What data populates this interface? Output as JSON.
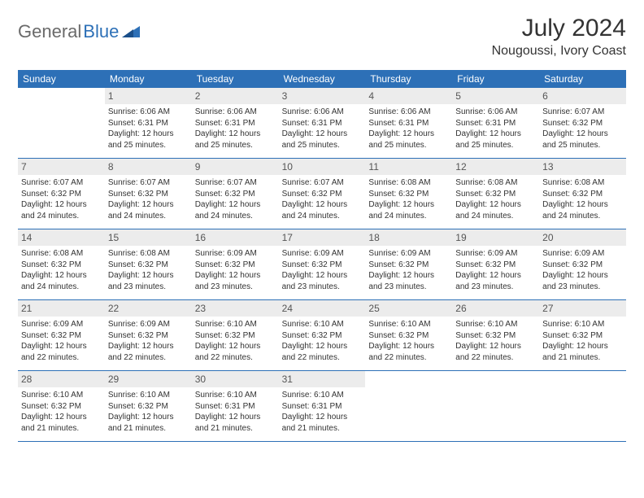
{
  "logo": {
    "part1": "General",
    "part2": "Blue"
  },
  "title": "July 2024",
  "location": "Nougoussi, Ivory Coast",
  "colors": {
    "header_bg": "#2d70b7",
    "header_text": "#ffffff",
    "daynum_bg": "#ececec",
    "border": "#2d70b7",
    "text": "#333333",
    "logo_gray": "#6a6a6a",
    "logo_blue": "#2d70b7"
  },
  "day_names": [
    "Sunday",
    "Monday",
    "Tuesday",
    "Wednesday",
    "Thursday",
    "Friday",
    "Saturday"
  ],
  "weeks": [
    [
      {
        "n": "",
        "sr": "",
        "ss": "",
        "d1": "",
        "d2": ""
      },
      {
        "n": "1",
        "sr": "Sunrise: 6:06 AM",
        "ss": "Sunset: 6:31 PM",
        "d1": "Daylight: 12 hours",
        "d2": "and 25 minutes."
      },
      {
        "n": "2",
        "sr": "Sunrise: 6:06 AM",
        "ss": "Sunset: 6:31 PM",
        "d1": "Daylight: 12 hours",
        "d2": "and 25 minutes."
      },
      {
        "n": "3",
        "sr": "Sunrise: 6:06 AM",
        "ss": "Sunset: 6:31 PM",
        "d1": "Daylight: 12 hours",
        "d2": "and 25 minutes."
      },
      {
        "n": "4",
        "sr": "Sunrise: 6:06 AM",
        "ss": "Sunset: 6:31 PM",
        "d1": "Daylight: 12 hours",
        "d2": "and 25 minutes."
      },
      {
        "n": "5",
        "sr": "Sunrise: 6:06 AM",
        "ss": "Sunset: 6:31 PM",
        "d1": "Daylight: 12 hours",
        "d2": "and 25 minutes."
      },
      {
        "n": "6",
        "sr": "Sunrise: 6:07 AM",
        "ss": "Sunset: 6:32 PM",
        "d1": "Daylight: 12 hours",
        "d2": "and 25 minutes."
      }
    ],
    [
      {
        "n": "7",
        "sr": "Sunrise: 6:07 AM",
        "ss": "Sunset: 6:32 PM",
        "d1": "Daylight: 12 hours",
        "d2": "and 24 minutes."
      },
      {
        "n": "8",
        "sr": "Sunrise: 6:07 AM",
        "ss": "Sunset: 6:32 PM",
        "d1": "Daylight: 12 hours",
        "d2": "and 24 minutes."
      },
      {
        "n": "9",
        "sr": "Sunrise: 6:07 AM",
        "ss": "Sunset: 6:32 PM",
        "d1": "Daylight: 12 hours",
        "d2": "and 24 minutes."
      },
      {
        "n": "10",
        "sr": "Sunrise: 6:07 AM",
        "ss": "Sunset: 6:32 PM",
        "d1": "Daylight: 12 hours",
        "d2": "and 24 minutes."
      },
      {
        "n": "11",
        "sr": "Sunrise: 6:08 AM",
        "ss": "Sunset: 6:32 PM",
        "d1": "Daylight: 12 hours",
        "d2": "and 24 minutes."
      },
      {
        "n": "12",
        "sr": "Sunrise: 6:08 AM",
        "ss": "Sunset: 6:32 PM",
        "d1": "Daylight: 12 hours",
        "d2": "and 24 minutes."
      },
      {
        "n": "13",
        "sr": "Sunrise: 6:08 AM",
        "ss": "Sunset: 6:32 PM",
        "d1": "Daylight: 12 hours",
        "d2": "and 24 minutes."
      }
    ],
    [
      {
        "n": "14",
        "sr": "Sunrise: 6:08 AM",
        "ss": "Sunset: 6:32 PM",
        "d1": "Daylight: 12 hours",
        "d2": "and 24 minutes."
      },
      {
        "n": "15",
        "sr": "Sunrise: 6:08 AM",
        "ss": "Sunset: 6:32 PM",
        "d1": "Daylight: 12 hours",
        "d2": "and 23 minutes."
      },
      {
        "n": "16",
        "sr": "Sunrise: 6:09 AM",
        "ss": "Sunset: 6:32 PM",
        "d1": "Daylight: 12 hours",
        "d2": "and 23 minutes."
      },
      {
        "n": "17",
        "sr": "Sunrise: 6:09 AM",
        "ss": "Sunset: 6:32 PM",
        "d1": "Daylight: 12 hours",
        "d2": "and 23 minutes."
      },
      {
        "n": "18",
        "sr": "Sunrise: 6:09 AM",
        "ss": "Sunset: 6:32 PM",
        "d1": "Daylight: 12 hours",
        "d2": "and 23 minutes."
      },
      {
        "n": "19",
        "sr": "Sunrise: 6:09 AM",
        "ss": "Sunset: 6:32 PM",
        "d1": "Daylight: 12 hours",
        "d2": "and 23 minutes."
      },
      {
        "n": "20",
        "sr": "Sunrise: 6:09 AM",
        "ss": "Sunset: 6:32 PM",
        "d1": "Daylight: 12 hours",
        "d2": "and 23 minutes."
      }
    ],
    [
      {
        "n": "21",
        "sr": "Sunrise: 6:09 AM",
        "ss": "Sunset: 6:32 PM",
        "d1": "Daylight: 12 hours",
        "d2": "and 22 minutes."
      },
      {
        "n": "22",
        "sr": "Sunrise: 6:09 AM",
        "ss": "Sunset: 6:32 PM",
        "d1": "Daylight: 12 hours",
        "d2": "and 22 minutes."
      },
      {
        "n": "23",
        "sr": "Sunrise: 6:10 AM",
        "ss": "Sunset: 6:32 PM",
        "d1": "Daylight: 12 hours",
        "d2": "and 22 minutes."
      },
      {
        "n": "24",
        "sr": "Sunrise: 6:10 AM",
        "ss": "Sunset: 6:32 PM",
        "d1": "Daylight: 12 hours",
        "d2": "and 22 minutes."
      },
      {
        "n": "25",
        "sr": "Sunrise: 6:10 AM",
        "ss": "Sunset: 6:32 PM",
        "d1": "Daylight: 12 hours",
        "d2": "and 22 minutes."
      },
      {
        "n": "26",
        "sr": "Sunrise: 6:10 AM",
        "ss": "Sunset: 6:32 PM",
        "d1": "Daylight: 12 hours",
        "d2": "and 22 minutes."
      },
      {
        "n": "27",
        "sr": "Sunrise: 6:10 AM",
        "ss": "Sunset: 6:32 PM",
        "d1": "Daylight: 12 hours",
        "d2": "and 21 minutes."
      }
    ],
    [
      {
        "n": "28",
        "sr": "Sunrise: 6:10 AM",
        "ss": "Sunset: 6:32 PM",
        "d1": "Daylight: 12 hours",
        "d2": "and 21 minutes."
      },
      {
        "n": "29",
        "sr": "Sunrise: 6:10 AM",
        "ss": "Sunset: 6:32 PM",
        "d1": "Daylight: 12 hours",
        "d2": "and 21 minutes."
      },
      {
        "n": "30",
        "sr": "Sunrise: 6:10 AM",
        "ss": "Sunset: 6:31 PM",
        "d1": "Daylight: 12 hours",
        "d2": "and 21 minutes."
      },
      {
        "n": "31",
        "sr": "Sunrise: 6:10 AM",
        "ss": "Sunset: 6:31 PM",
        "d1": "Daylight: 12 hours",
        "d2": "and 21 minutes."
      },
      {
        "n": "",
        "sr": "",
        "ss": "",
        "d1": "",
        "d2": ""
      },
      {
        "n": "",
        "sr": "",
        "ss": "",
        "d1": "",
        "d2": ""
      },
      {
        "n": "",
        "sr": "",
        "ss": "",
        "d1": "",
        "d2": ""
      }
    ]
  ]
}
